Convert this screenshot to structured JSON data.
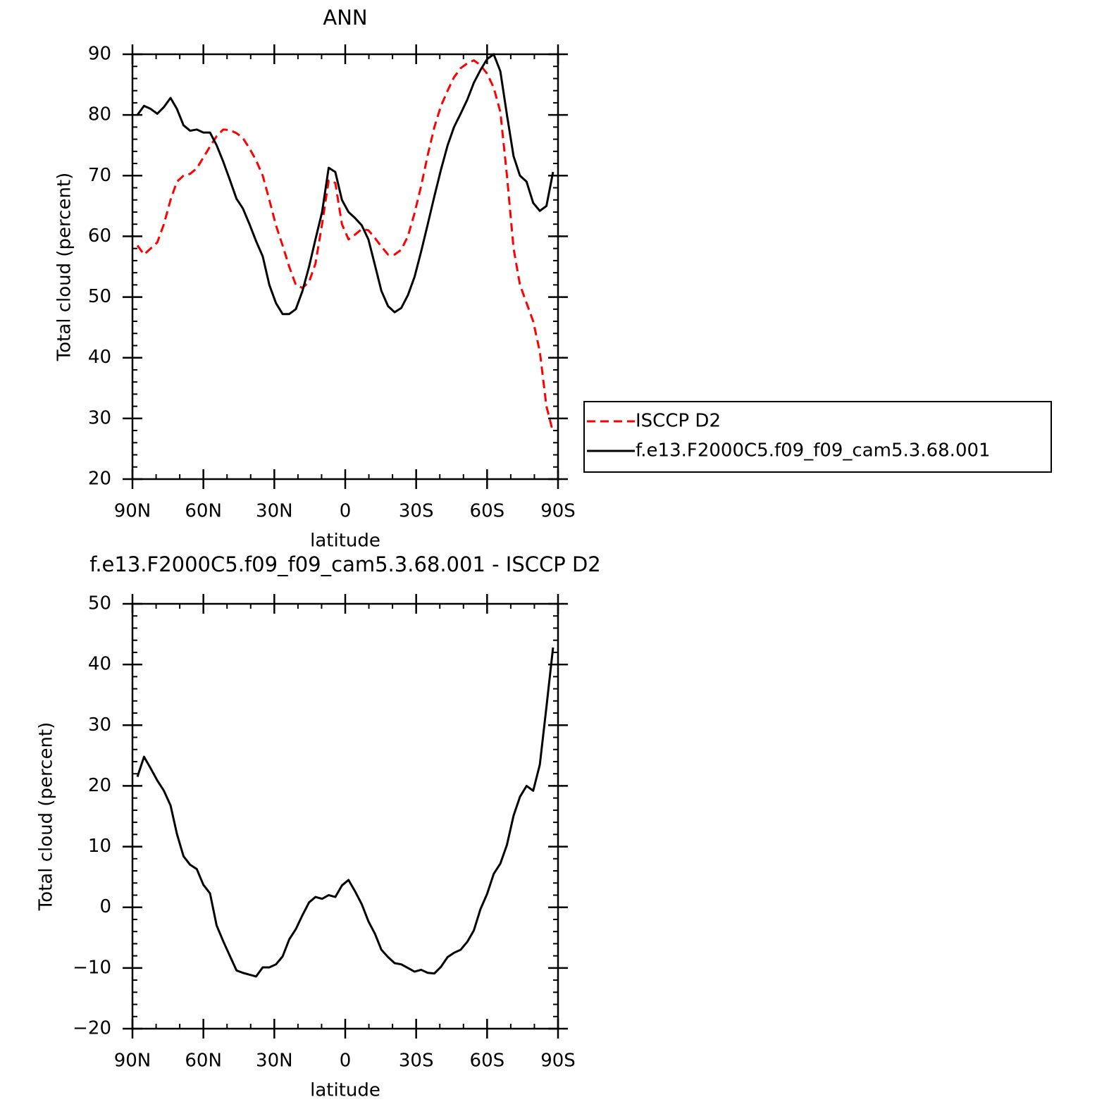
{
  "chart_data": [
    {
      "type": "line",
      "title": "ANN",
      "xlabel": "latitude",
      "ylabel": "Total cloud (percent)",
      "x": [
        87.9,
        85.1,
        82.3,
        79.5,
        76.7,
        73.9,
        71.2,
        68.4,
        65.6,
        62.8,
        60.0,
        57.2,
        54.4,
        51.6,
        48.8,
        46.0,
        43.3,
        40.5,
        37.7,
        34.9,
        32.1,
        29.3,
        26.5,
        23.7,
        20.9,
        18.1,
        15.3,
        12.6,
        9.8,
        7.0,
        4.2,
        1.4,
        -1.4,
        -4.2,
        -7.0,
        -9.8,
        -12.6,
        -15.3,
        -18.1,
        -20.9,
        -23.7,
        -26.5,
        -29.3,
        -32.1,
        -34.9,
        -37.7,
        -40.5,
        -43.3,
        -46.0,
        -48.8,
        -51.6,
        -54.4,
        -57.2,
        -60.0,
        -62.8,
        -65.6,
        -68.4,
        -71.2,
        -73.9,
        -76.7,
        -79.5,
        -82.3,
        -85.1,
        -87.9
      ],
      "series": [
        {
          "name": "ISCCP D2",
          "color": "#ff0000",
          "dash": true,
          "values": [
            58.5,
            57,
            58,
            59,
            62,
            66,
            69,
            70,
            70.3,
            71.2,
            73,
            74.8,
            76.5,
            77.6,
            77.5,
            77,
            76.2,
            74.5,
            72.5,
            70,
            66,
            61.8,
            58.5,
            55,
            52,
            51.5,
            52.5,
            55.5,
            62,
            69.2,
            68.8,
            62,
            59.5,
            60.3,
            61.2,
            61,
            59.7,
            58.3,
            57,
            57,
            57.8,
            60,
            63.8,
            68.3,
            73.4,
            78,
            81.5,
            84,
            86.2,
            87.7,
            88.5,
            89,
            88.2,
            86.8,
            84.5,
            80.5,
            70,
            58,
            52,
            49,
            46,
            41,
            32,
            27.7
          ]
        },
        {
          "name": "f.e13.F2000C5.f09_f09_cam5.3.68.001",
          "color": "#000000",
          "dash": false,
          "values": [
            80,
            81.5,
            81,
            80.2,
            81.3,
            82.8,
            81,
            78.3,
            77.4,
            77.6,
            77.1,
            77.1,
            75,
            72.3,
            69.3,
            66.2,
            64.6,
            62,
            59.2,
            56.7,
            52,
            49,
            47.2,
            47.2,
            48,
            51,
            55,
            59.5,
            64,
            71.3,
            70.6,
            66,
            64,
            63,
            61.8,
            59.5,
            55.2,
            51,
            48.5,
            47.5,
            48.2,
            50.3,
            53.3,
            57.5,
            62,
            66.6,
            71,
            75,
            78,
            80.2,
            82.5,
            85.3,
            87.4,
            89.2,
            90,
            87.2,
            80,
            73.2,
            70,
            69,
            65.5,
            64.2,
            65,
            70.6
          ]
        }
      ],
      "xlim": [
        90,
        -90
      ],
      "xticks": [
        {
          "value": 90,
          "label": "90N"
        },
        {
          "value": 60,
          "label": "60N"
        },
        {
          "value": 30,
          "label": "30N"
        },
        0,
        {
          "value": -30,
          "label": "30S"
        },
        {
          "value": -60,
          "label": "60S"
        },
        {
          "value": -90,
          "label": "90S"
        }
      ],
      "ylim": [
        20,
        90
      ],
      "yticks": [
        20,
        30,
        40,
        50,
        60,
        70,
        80,
        90
      ],
      "legend": "right"
    },
    {
      "type": "line",
      "title": "f.e13.F2000C5.f09_f09_cam5.3.68.001 - ISCCP D2",
      "xlabel": "latitude",
      "ylabel": "Total cloud (percent)",
      "x": [
        87.9,
        85.1,
        82.3,
        79.5,
        76.7,
        73.9,
        71.2,
        68.4,
        65.6,
        62.8,
        60.0,
        57.2,
        54.4,
        51.6,
        48.8,
        46.0,
        43.3,
        40.5,
        37.7,
        34.9,
        32.1,
        29.3,
        26.5,
        23.7,
        20.9,
        18.1,
        15.3,
        12.6,
        9.8,
        7.0,
        4.2,
        1.4,
        -1.4,
        -4.2,
        -7.0,
        -9.8,
        -12.6,
        -15.3,
        -18.1,
        -20.9,
        -23.7,
        -26.5,
        -29.3,
        -32.1,
        -34.9,
        -37.7,
        -40.5,
        -43.3,
        -46.0,
        -48.8,
        -51.6,
        -54.4,
        -57.2,
        -60.0,
        -62.8,
        -65.6,
        -68.4,
        -71.2,
        -73.9,
        -76.7,
        -79.5,
        -82.3,
        -85.1,
        -87.9
      ],
      "values": [
        21.5,
        24.8,
        22.9,
        20.9,
        19.2,
        16.8,
        12.1,
        8.4,
        7,
        6.3,
        3.7,
        2.3,
        -3,
        -5.6,
        -8,
        -10.4,
        -10.8,
        -11.1,
        -11.4,
        -9.9,
        -9.9,
        -9.4,
        -8.1,
        -5.3,
        -3.6,
        -1.3,
        0.8,
        1.7,
        1.4,
        2,
        1.7,
        3.6,
        4.5,
        2.6,
        0.5,
        -2.3,
        -4.4,
        -7,
        -8.2,
        -9.2,
        -9.4,
        -10,
        -10.6,
        -10.3,
        -10.8,
        -10.9,
        -9.8,
        -8.2,
        -7.5,
        -7,
        -5.7,
        -3.8,
        -0.3,
        2.2,
        5.5,
        7.2,
        10.3,
        15.1,
        18.2,
        20,
        19.2,
        23.5,
        33,
        42.8
      ],
      "color": "#000000",
      "xlim": [
        90,
        -90
      ],
      "xticks": [
        {
          "value": 90,
          "label": "90N"
        },
        {
          "value": 60,
          "label": "60N"
        },
        {
          "value": 30,
          "label": "30N"
        },
        0,
        {
          "value": -30,
          "label": "30S"
        },
        {
          "value": -60,
          "label": "60S"
        },
        {
          "value": -90,
          "label": "90S"
        }
      ],
      "ylim": [
        -20,
        50
      ],
      "yticks": [
        {
          "value": -20,
          "label": "−20"
        },
        {
          "value": -10,
          "label": "−10"
        },
        0,
        10,
        20,
        30,
        40,
        50
      ]
    }
  ]
}
